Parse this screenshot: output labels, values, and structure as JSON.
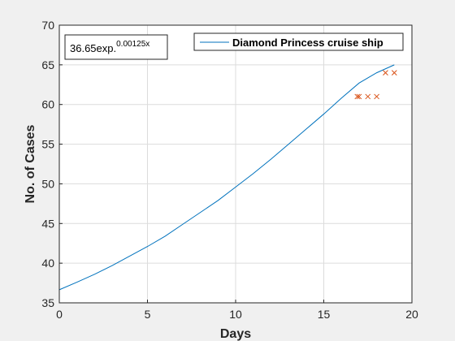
{
  "chart_data": {
    "type": "line",
    "xlabel": "Days",
    "ylabel": "No. of Cases",
    "xlim": [
      0,
      20
    ],
    "ylim": [
      35,
      70
    ],
    "xticks": [
      0,
      5,
      10,
      15,
      20
    ],
    "yticks": [
      35,
      40,
      45,
      50,
      55,
      60,
      65,
      70
    ],
    "grid": true,
    "legend_position": "top-right",
    "annotation": {
      "base": "36.65exp.",
      "exponent": "0.00125x"
    },
    "series": [
      {
        "name": "Diamond Princess cruise ship",
        "kind": "line",
        "color": "#0072bd",
        "x": [
          0,
          1,
          2,
          3,
          4,
          5,
          6,
          7,
          8,
          9,
          10,
          11,
          12,
          13,
          14,
          15,
          16,
          17,
          18,
          19
        ],
        "y": [
          36.65,
          37.6,
          38.6,
          39.7,
          40.9,
          42.1,
          43.4,
          44.9,
          46.4,
          47.9,
          49.6,
          51.3,
          53.1,
          55.0,
          56.9,
          58.8,
          60.8,
          62.7,
          64.0,
          65.0
        ]
      },
      {
        "name": "",
        "kind": "scatter",
        "marker": "x",
        "color": "#d95319",
        "x": [
          16.9,
          17.0,
          17.5,
          18.0,
          18.5,
          19.0
        ],
        "y": [
          61,
          61,
          61,
          61,
          64,
          64
        ]
      }
    ]
  }
}
